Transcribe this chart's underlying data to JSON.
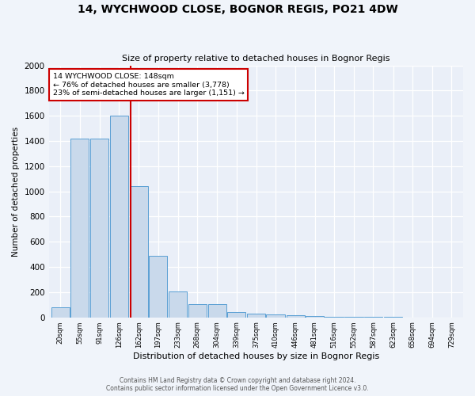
{
  "title": "14, WYCHWOOD CLOSE, BOGNOR REGIS, PO21 4DW",
  "subtitle": "Size of property relative to detached houses in Bognor Regis",
  "xlabel": "Distribution of detached houses by size in Bognor Regis",
  "ylabel": "Number of detached properties",
  "categories": [
    "20sqm",
    "55sqm",
    "91sqm",
    "126sqm",
    "162sqm",
    "197sqm",
    "233sqm",
    "268sqm",
    "304sqm",
    "339sqm",
    "375sqm",
    "410sqm",
    "446sqm",
    "481sqm",
    "516sqm",
    "552sqm",
    "587sqm",
    "623sqm",
    "658sqm",
    "694sqm",
    "729sqm"
  ],
  "bin_edges": [
    20,
    55,
    91,
    126,
    162,
    197,
    233,
    268,
    304,
    339,
    375,
    410,
    446,
    481,
    516,
    552,
    587,
    623,
    658,
    694,
    729
  ],
  "values": [
    80,
    1420,
    1420,
    1600,
    1040,
    490,
    205,
    105,
    105,
    40,
    30,
    25,
    15,
    10,
    5,
    5,
    3,
    2,
    1,
    1,
    0
  ],
  "bar_color": "#c9d9eb",
  "bar_edge_color": "#5a9fd4",
  "red_line_color": "#cc0000",
  "annotation_title": "14 WYCHWOOD CLOSE: 148sqm",
  "annotation_line1": "← 76% of detached houses are smaller (3,778)",
  "annotation_line2": "23% of semi-detached houses are larger (1,151) →",
  "annotation_box_color": "#ffffff",
  "annotation_box_edge": "#cc0000",
  "ylim": [
    0,
    2000
  ],
  "yticks": [
    0,
    200,
    400,
    600,
    800,
    1000,
    1200,
    1400,
    1600,
    1800,
    2000
  ],
  "plot_bg": "#eaeff8",
  "fig_bg": "#f0f4fa",
  "grid_color": "#ffffff",
  "footer_line1": "Contains HM Land Registry data © Crown copyright and database right 2024.",
  "footer_line2": "Contains public sector information licensed under the Open Government Licence v3.0."
}
